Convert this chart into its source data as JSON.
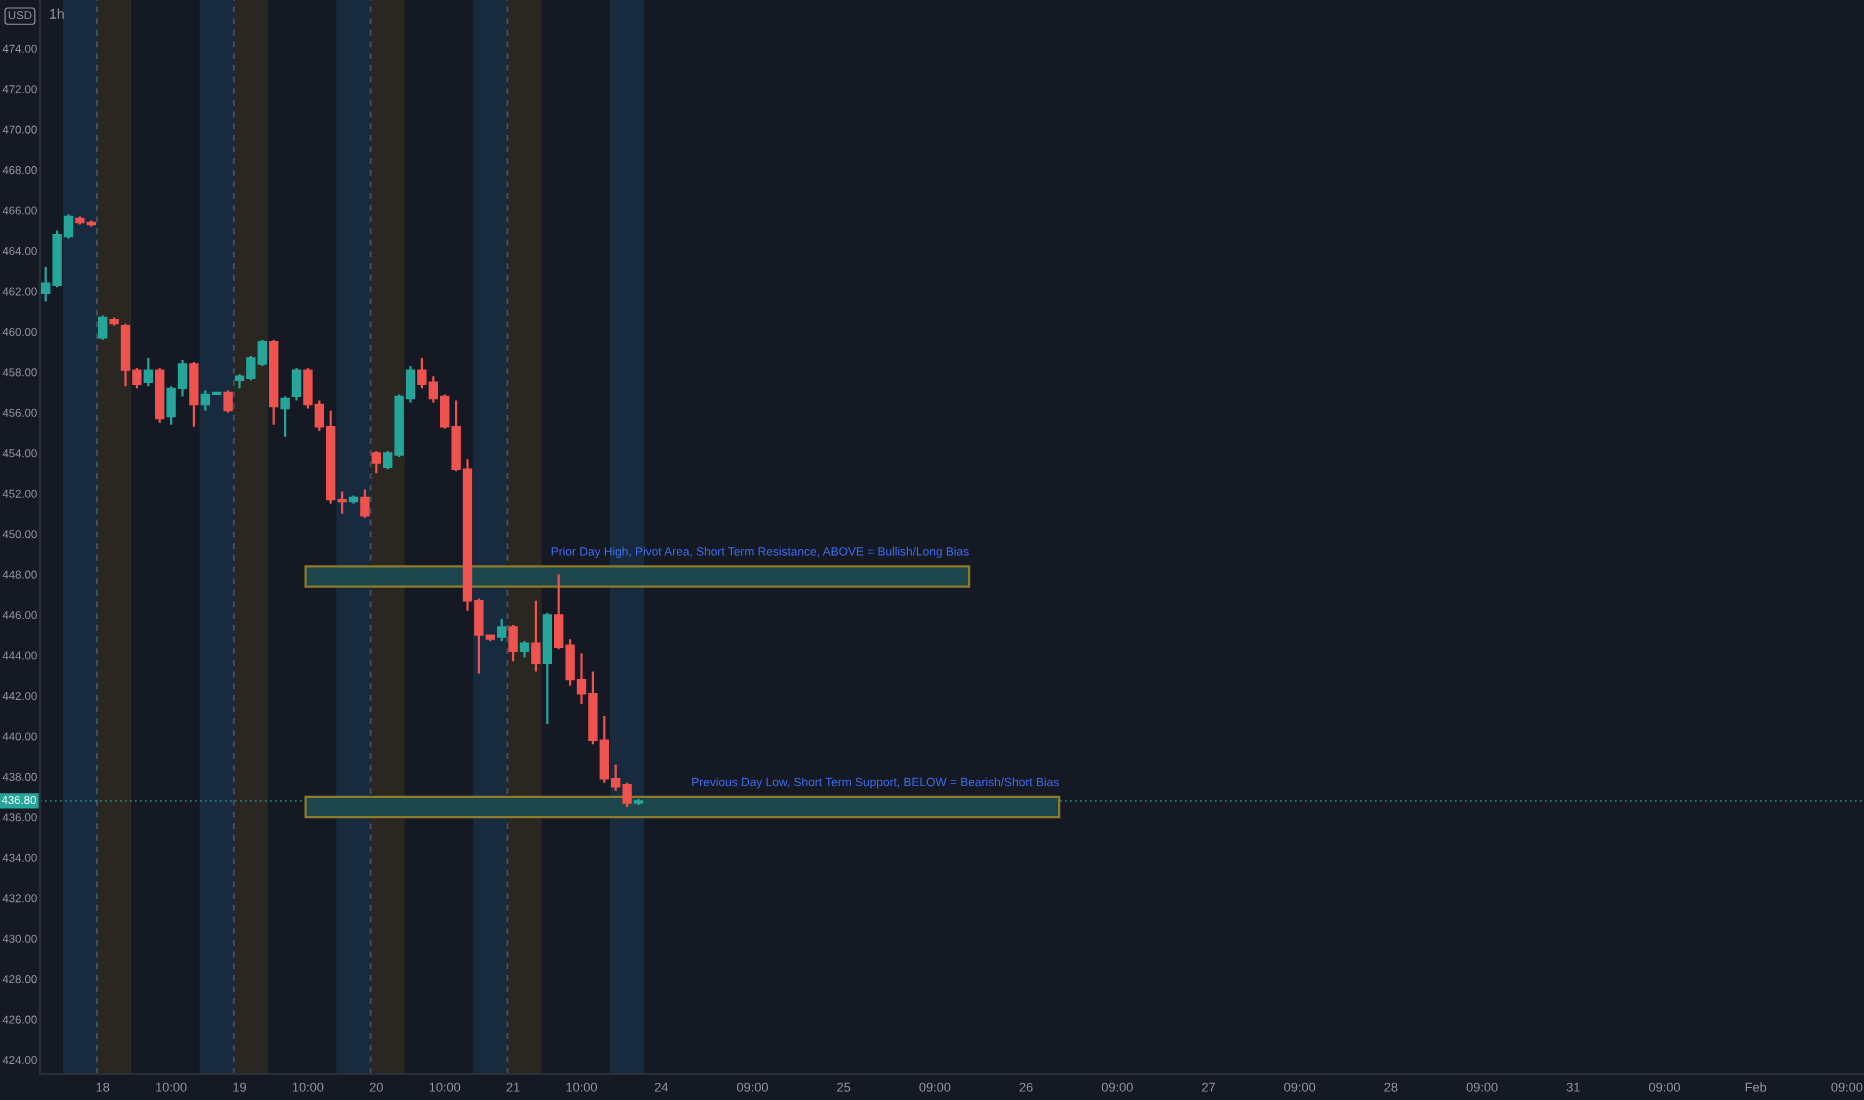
{
  "chart_data": {
    "type": "candlestick",
    "title": "1h",
    "ylabel": "USD",
    "categories": [
      null,
      null,
      null,
      null,
      null,
      "18",
      null,
      null,
      null,
      null,
      null,
      "10:00",
      null,
      null,
      null,
      null,
      null,
      "19",
      null,
      null,
      null,
      null,
      null,
      "10:00",
      null,
      null,
      null,
      null,
      null,
      "20",
      null,
      null,
      null,
      null,
      null,
      "10:00",
      null,
      null,
      null,
      null,
      null,
      "21",
      null,
      null,
      null,
      null,
      null,
      "10:00",
      null,
      null,
      null,
      null,
      null,
      null,
      "24",
      null,
      null,
      null,
      null,
      null,
      null,
      null,
      "09:00",
      null,
      null,
      null,
      null,
      null,
      null,
      null,
      "25",
      null,
      null,
      null,
      null,
      null,
      null,
      null,
      "09:00",
      null,
      null,
      null,
      null,
      null,
      null,
      null,
      "26",
      null,
      null,
      null,
      null,
      null,
      null,
      null,
      "09:00",
      null,
      null,
      null,
      null,
      null,
      null,
      null,
      "27",
      null,
      null,
      null,
      null,
      null,
      null,
      null,
      "09:00",
      null,
      null,
      null,
      null,
      null,
      null,
      null,
      "28",
      null,
      null,
      null,
      null,
      null,
      null,
      null,
      "09:00",
      null,
      null,
      null,
      null,
      null,
      null,
      null,
      "31",
      null,
      null,
      null,
      null,
      null,
      null,
      null,
      "09:00",
      null,
      null,
      null,
      null,
      null,
      null,
      null,
      "Feb",
      null,
      null,
      null,
      null,
      null,
      null,
      null,
      "09:00",
      null
    ],
    "ohlc": [
      [
        461.9,
        463.2,
        461.5,
        462.4
      ],
      [
        462.3,
        465.0,
        462.2,
        464.8
      ],
      [
        464.7,
        465.8,
        464.6,
        465.7
      ],
      [
        465.6,
        465.7,
        465.3,
        465.4
      ],
      [
        465.4,
        465.5,
        465.2,
        465.3
      ],
      [
        459.7,
        460.8,
        459.6,
        460.7
      ],
      [
        460.6,
        460.7,
        460.3,
        460.4
      ],
      [
        460.3,
        460.4,
        457.3,
        458.1
      ],
      [
        458.1,
        458.2,
        457.2,
        457.4
      ],
      [
        457.5,
        458.7,
        457.3,
        458.1
      ],
      [
        458.1,
        458.2,
        455.5,
        455.7
      ],
      [
        455.8,
        457.3,
        455.4,
        457.2
      ],
      [
        457.2,
        458.6,
        456.8,
        458.4
      ],
      [
        458.4,
        458.5,
        455.3,
        456.4
      ],
      [
        456.4,
        457.1,
        456.1,
        456.9
      ],
      [
        456.9,
        457.0,
        456.9,
        457.0
      ],
      [
        457.0,
        457.1,
        456.0,
        456.1
      ],
      [
        457.6,
        457.9,
        457.2,
        457.8
      ],
      [
        457.7,
        458.8,
        457.6,
        458.7
      ],
      [
        458.4,
        459.6,
        458.3,
        459.5
      ],
      [
        459.5,
        459.6,
        455.4,
        456.3
      ],
      [
        456.2,
        456.8,
        454.8,
        456.7
      ],
      [
        456.8,
        458.2,
        456.6,
        458.1
      ],
      [
        458.1,
        458.2,
        456.2,
        456.4
      ],
      [
        456.4,
        456.6,
        455.1,
        455.3
      ],
      [
        455.3,
        456.1,
        451.5,
        451.7
      ],
      [
        451.7,
        452.1,
        451.0,
        451.6
      ],
      [
        451.6,
        451.9,
        451.5,
        451.8
      ],
      [
        451.8,
        452.2,
        450.8,
        450.9
      ],
      [
        454.0,
        454.1,
        453.0,
        453.5
      ],
      [
        453.3,
        454.1,
        453.2,
        454.0
      ],
      [
        453.9,
        456.9,
        453.8,
        456.8
      ],
      [
        456.7,
        458.3,
        456.5,
        458.1
      ],
      [
        458.1,
        458.7,
        457.2,
        457.4
      ],
      [
        457.5,
        457.8,
        456.5,
        456.7
      ],
      [
        456.8,
        456.9,
        455.2,
        455.3
      ],
      [
        455.3,
        456.6,
        453.1,
        453.2
      ],
      [
        453.2,
        453.7,
        446.2,
        446.7
      ],
      [
        446.7,
        446.8,
        443.1,
        445.0
      ],
      [
        445.0,
        445.0,
        444.7,
        444.8
      ],
      [
        444.9,
        445.8,
        444.7,
        445.4
      ],
      [
        445.4,
        445.5,
        443.7,
        444.2
      ],
      [
        444.2,
        444.7,
        443.9,
        444.6
      ],
      [
        444.6,
        446.7,
        443.2,
        443.6
      ],
      [
        443.6,
        446.1,
        440.6,
        446.0
      ],
      [
        446.0,
        448.0,
        444.3,
        444.4
      ],
      [
        444.5,
        444.8,
        442.5,
        442.8
      ],
      [
        442.8,
        444.1,
        441.6,
        442.1
      ],
      [
        442.1,
        443.2,
        439.6,
        439.8
      ],
      [
        439.8,
        441.0,
        437.7,
        437.9
      ],
      [
        437.9,
        438.6,
        437.3,
        437.5
      ],
      [
        437.6,
        437.7,
        436.5,
        436.7
      ],
      [
        436.7,
        436.9,
        436.6,
        436.8
      ],
      null,
      null,
      null,
      null,
      null,
      null,
      null,
      null,
      null,
      null,
      null,
      null,
      null,
      null,
      null,
      null,
      null,
      null,
      null,
      null,
      null,
      null,
      null,
      null,
      null,
      null,
      null,
      null,
      null,
      null,
      null,
      null,
      null,
      null,
      null,
      null,
      null,
      null,
      null,
      null,
      null,
      null,
      null,
      null,
      null,
      null,
      null,
      null,
      null,
      null,
      null,
      null,
      null,
      null,
      null,
      null,
      null,
      null,
      null,
      null,
      null,
      null,
      null,
      null,
      null,
      null,
      null,
      null,
      null,
      null,
      null,
      null,
      null,
      null,
      null,
      null,
      null,
      null,
      null,
      null,
      null,
      null,
      null,
      null,
      null,
      null,
      null,
      null,
      null,
      null,
      null,
      null,
      null,
      null,
      null,
      null,
      null,
      null,
      null,
      null,
      null,
      null,
      null,
      null,
      null,
      null,
      null
    ],
    "colors": [
      "#26a69a",
      "#26a69a",
      "#26a69a",
      "#ef5350",
      "#ef5350",
      "#26a69a",
      "#ef5350",
      "#ef5350",
      "#ef5350",
      "#26a69a",
      "#ef5350",
      "#26a69a",
      "#26a69a",
      "#ef5350",
      "#26a69a",
      "#26a69a",
      "#ef5350",
      "#26a69a",
      "#26a69a",
      "#26a69a",
      "#ef5350",
      "#26a69a",
      "#26a69a",
      "#ef5350",
      "#ef5350",
      "#ef5350",
      "#ef5350",
      "#26a69a",
      "#ef5350",
      "#ef5350",
      "#26a69a",
      "#26a69a",
      "#26a69a",
      "#ef5350",
      "#ef5350",
      "#ef5350",
      "#ef5350",
      "#ef5350",
      "#ef5350",
      "#ef5350",
      "#26a69a",
      "#ef5350",
      "#26a69a",
      "#ef5350",
      "#26a69a",
      "#ef5350",
      "#ef5350",
      "#ef5350",
      "#ef5350",
      "#ef5350",
      "#ef5350",
      "#ef5350",
      "#26a69a",
      null,
      null,
      null,
      null,
      null,
      null,
      null,
      null,
      null,
      null,
      null,
      null,
      null,
      null,
      null,
      null,
      null,
      null,
      null,
      null,
      null,
      null,
      null,
      null,
      null,
      null,
      null,
      null,
      null,
      null,
      null,
      null,
      null,
      null,
      null,
      null,
      null,
      null,
      null,
      null,
      null,
      null,
      null,
      null,
      null,
      null,
      null,
      null,
      null,
      null,
      null,
      null,
      null,
      null,
      null,
      null,
      null,
      null,
      null,
      null,
      null,
      null,
      null,
      null,
      null,
      null,
      null,
      null,
      null,
      null,
      null,
      null,
      null,
      null,
      null,
      null,
      null,
      null,
      null,
      null,
      null,
      null,
      null,
      null,
      null,
      null,
      null,
      null,
      null,
      null,
      null,
      null,
      null,
      null,
      null,
      null,
      null,
      null,
      null,
      null,
      null,
      null,
      null,
      null,
      null,
      null,
      null
    ],
    "ylim": [
      423.3,
      476.4
    ],
    "yticks": [
      {
        "value": 424,
        "label": "424.00"
      },
      {
        "value": 426,
        "label": "426.00"
      },
      {
        "value": 428,
        "label": "428.00"
      },
      {
        "value": 430,
        "label": "430.00"
      },
      {
        "value": 432,
        "label": "432.00"
      },
      {
        "value": 434,
        "label": "434.00"
      },
      {
        "value": 436,
        "label": "436.00"
      },
      {
        "value": 438,
        "label": "438.00"
      },
      {
        "value": 440,
        "label": "440.00"
      },
      {
        "value": 442,
        "label": "442.00"
      },
      {
        "value": 444,
        "label": "444.00"
      },
      {
        "value": 446,
        "label": "446.00"
      },
      {
        "value": 448,
        "label": "448.00"
      },
      {
        "value": 450,
        "label": "450.00"
      },
      {
        "value": 452,
        "label": "452.00"
      },
      {
        "value": 454,
        "label": "454.00"
      },
      {
        "value": 456,
        "label": "456.00"
      },
      {
        "value": 458,
        "label": "458.00"
      },
      {
        "value": 460,
        "label": "460.00"
      },
      {
        "value": 462,
        "label": "462.00"
      },
      {
        "value": 464,
        "label": "464.00"
      },
      {
        "value": 466,
        "label": "466.00"
      },
      {
        "value": 468,
        "label": "468.00"
      },
      {
        "value": 470,
        "label": "470.00"
      },
      {
        "value": 472,
        "label": "472.00"
      },
      {
        "value": 474,
        "label": "474.00"
      }
    ],
    "bands": [
      {
        "axis": "y",
        "from": 447.4,
        "to": 448.4,
        "color": "#1d464c",
        "label": "Prior Day High, Pivot Area, Short Term Resistance, ABOVE = Bullish/Long Bias"
      },
      {
        "axis": "y",
        "from": 436.0,
        "to": 437.0,
        "color": "#1d464c",
        "label": "Previous Day Low, Short Term Support, BELOW = Bearish/Short Bias"
      }
    ],
    "ref_lines": [
      {
        "axis": "y",
        "value": 436.8,
        "color": "#26a69a",
        "line_style": "dotted",
        "label": "436.80"
      }
    ]
  }
}
